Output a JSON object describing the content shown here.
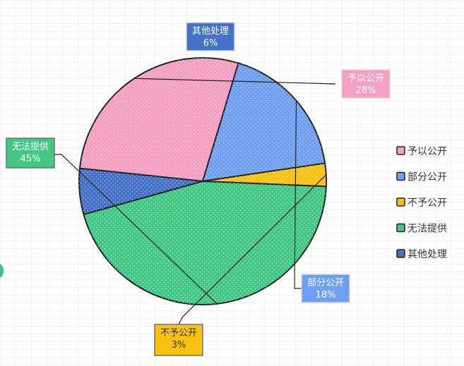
{
  "chart_data": {
    "type": "pie",
    "slices": [
      {
        "label": "予以公开",
        "value": 28,
        "display": "28%",
        "color": "#f59fc3",
        "border": "#d8d8d8"
      },
      {
        "label": "部分公开",
        "value": 18,
        "display": "18%",
        "color": "#6f9ff2",
        "border": "#d8d8d8"
      },
      {
        "label": "不予公开",
        "value": 3,
        "display": "3%",
        "color": "#f8c210",
        "border": "#707070"
      },
      {
        "label": "无法提供",
        "value": 45,
        "display": "45%",
        "color": "#42c785",
        "border": "#707070"
      },
      {
        "label": "其他处理",
        "value": 6,
        "display": "6%",
        "color": "#4472c8",
        "border": "#d8d8d8"
      }
    ],
    "legend": {
      "position": "right",
      "items": [
        {
          "label": "予以公开",
          "color": "#f59fc3"
        },
        {
          "label": "部分公开",
          "color": "#6f9ff2"
        },
        {
          "label": "不予公开",
          "color": "#f8c210"
        },
        {
          "label": "无法提供",
          "color": "#42c785"
        },
        {
          "label": "其他处理",
          "color": "#4472c8"
        }
      ]
    }
  }
}
